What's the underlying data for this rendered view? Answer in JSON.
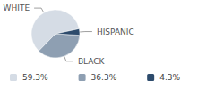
{
  "chart_data": {
    "type": "pie",
    "categories": [
      "WHITE",
      "BLACK",
      "HISPANIC"
    ],
    "values": [
      59.3,
      36.3,
      4.3
    ],
    "value_labels": [
      "59.3%",
      "36.3%",
      "4.3%"
    ],
    "colors": [
      "#d5dce5",
      "#8e9fb2",
      "#2d4b6c"
    ],
    "legend": "bottom"
  }
}
